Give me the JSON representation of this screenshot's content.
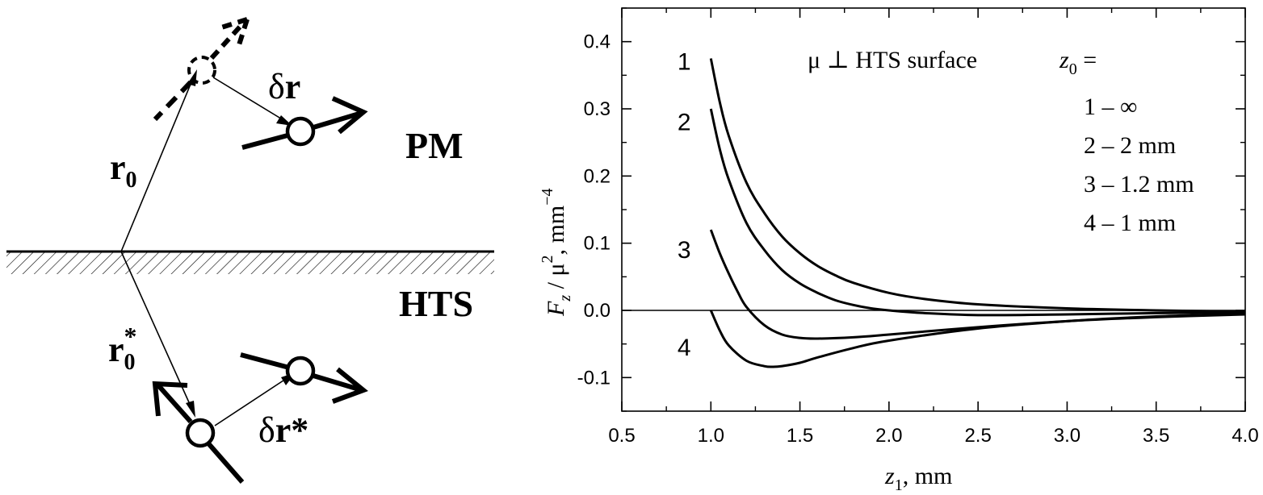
{
  "diagram": {
    "label_pm": "PM",
    "label_hts": "HTS",
    "label_r0": "r",
    "label_r0_sub": "0",
    "label_dr_delta": "δ",
    "label_dr": "r",
    "label_r0star": "r",
    "label_r0star_sub": "0",
    "label_r0star_sup": "*",
    "label_drstar_delta": "δ",
    "label_drstar": "r*"
  },
  "chart_data": {
    "type": "line",
    "annotation": "μ ⊥ HTS surface",
    "ylabel_main": "F",
    "ylabel_sub": "z",
    "ylabel_mid": " / μ",
    "ylabel_sup2": "2",
    "ylabel_units": ", mm",
    "ylabel_sup4": "−4",
    "xlabel_main": "z",
    "xlabel_sub": "1",
    "xlabel_units": ", mm",
    "legend_title_main": "z",
    "legend_title_sub": "0",
    "legend_title_eq": " =",
    "legend_entries": [
      "1 – ∞",
      "2 – 2 mm",
      "3 – 1.2 mm",
      "4 – 1 mm"
    ],
    "xlim": [
      0.5,
      4.0
    ],
    "ylim": [
      -0.15,
      0.45
    ],
    "x_ticks": [
      "0.5",
      "1.0",
      "1.5",
      "2.0",
      "2.5",
      "3.0",
      "3.5",
      "4.0"
    ],
    "y_ticks": [
      "-0.1",
      "0.0",
      "0.1",
      "0.2",
      "0.3",
      "0.4"
    ],
    "series": [
      {
        "curve_label": "1",
        "x": [
          1.0,
          1.05,
          1.1,
          1.2,
          1.3,
          1.4,
          1.5,
          1.6,
          1.7,
          1.8,
          2.0,
          2.2,
          2.5,
          3.0,
          3.5,
          4.0
        ],
        "y": [
          0.375,
          0.31,
          0.26,
          0.19,
          0.145,
          0.11,
          0.085,
          0.066,
          0.052,
          0.041,
          0.026,
          0.017,
          0.009,
          0.003,
          0.0,
          -0.002
        ]
      },
      {
        "curve_label": "2",
        "x": [
          1.0,
          1.05,
          1.1,
          1.2,
          1.3,
          1.4,
          1.5,
          1.6,
          1.7,
          1.8,
          1.9,
          2.0,
          2.2,
          2.5,
          3.0,
          3.5,
          4.0
        ],
        "y": [
          0.3,
          0.24,
          0.195,
          0.13,
          0.09,
          0.06,
          0.04,
          0.026,
          0.015,
          0.008,
          0.003,
          0.0,
          -0.004,
          -0.007,
          -0.006,
          -0.004,
          -0.003
        ]
      },
      {
        "curve_label": "3",
        "x": [
          1.0,
          1.05,
          1.1,
          1.15,
          1.2,
          1.3,
          1.4,
          1.5,
          1.6,
          1.8,
          2.0,
          2.5,
          3.0,
          3.5,
          4.0
        ],
        "y": [
          0.12,
          0.085,
          0.055,
          0.028,
          0.005,
          -0.022,
          -0.036,
          -0.041,
          -0.042,
          -0.04,
          -0.036,
          -0.025,
          -0.016,
          -0.01,
          -0.006
        ]
      },
      {
        "curve_label": "4",
        "x": [
          1.0,
          1.05,
          1.1,
          1.2,
          1.3,
          1.35,
          1.4,
          1.5,
          1.6,
          1.8,
          2.0,
          2.5,
          3.0,
          3.5,
          4.0
        ],
        "y": [
          0.0,
          -0.03,
          -0.052,
          -0.075,
          -0.083,
          -0.084,
          -0.083,
          -0.078,
          -0.07,
          -0.056,
          -0.045,
          -0.027,
          -0.016,
          -0.009,
          -0.005
        ]
      }
    ],
    "curve_label_positions": [
      {
        "label": "1",
        "x": 0.85,
        "y": 0.37
      },
      {
        "label": "2",
        "x": 0.85,
        "y": 0.28
      },
      {
        "label": "3",
        "x": 0.85,
        "y": 0.09
      },
      {
        "label": "4",
        "x": 0.85,
        "y": -0.055
      }
    ]
  }
}
